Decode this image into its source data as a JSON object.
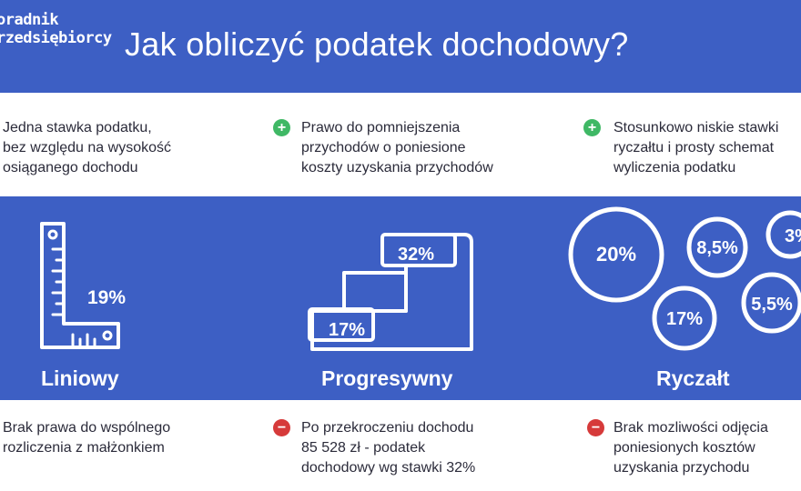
{
  "header": {
    "logo_line1": "oradnik",
    "logo_line2": "rzedsiębiorcy",
    "title": "Jak obliczyć podatek dochodowy?"
  },
  "columns": [
    {
      "name": "Liniowy",
      "rate": "19%",
      "pro": [
        "Jedna stawka podatku,",
        "bez względu na wysokość",
        "osiąganego dochodu"
      ],
      "con": [
        "Brak prawa do wspólnego",
        "rozliczenia z małżonkiem"
      ],
      "icon": "ruler-square-icon"
    },
    {
      "name": "Progresywny",
      "rates": [
        "17%",
        "32%"
      ],
      "pro": [
        "Prawo do pomniejszenia",
        "przychodów o poniesione",
        "koszty uzyskania przychodów"
      ],
      "con": [
        "Po przekroczeniu dochodu",
        "85 528 zł - podatek",
        "dochodowy wg stawki 32%"
      ],
      "icon": "stairs-icon"
    },
    {
      "name": "Ryczałt",
      "rates": [
        "20%",
        "8,5%",
        "3%",
        "17%",
        "5,5%"
      ],
      "pro": [
        "Stosunkowo niskie stawki",
        "ryczałtu i prosty schemat",
        "wyliczenia podatku"
      ],
      "con": [
        "Brak mozliwości odjęcia",
        "poniesionych kosztów",
        "uzyskania przychodu"
      ],
      "icon": "circles-icon"
    }
  ],
  "badges": {
    "plus": "+",
    "minus": "−"
  },
  "colors": {
    "blue": "#3d5fc4",
    "white": "#ffffff",
    "plus": "#3fb865",
    "minus": "#d63a3a",
    "text": "#2b2b3a"
  }
}
